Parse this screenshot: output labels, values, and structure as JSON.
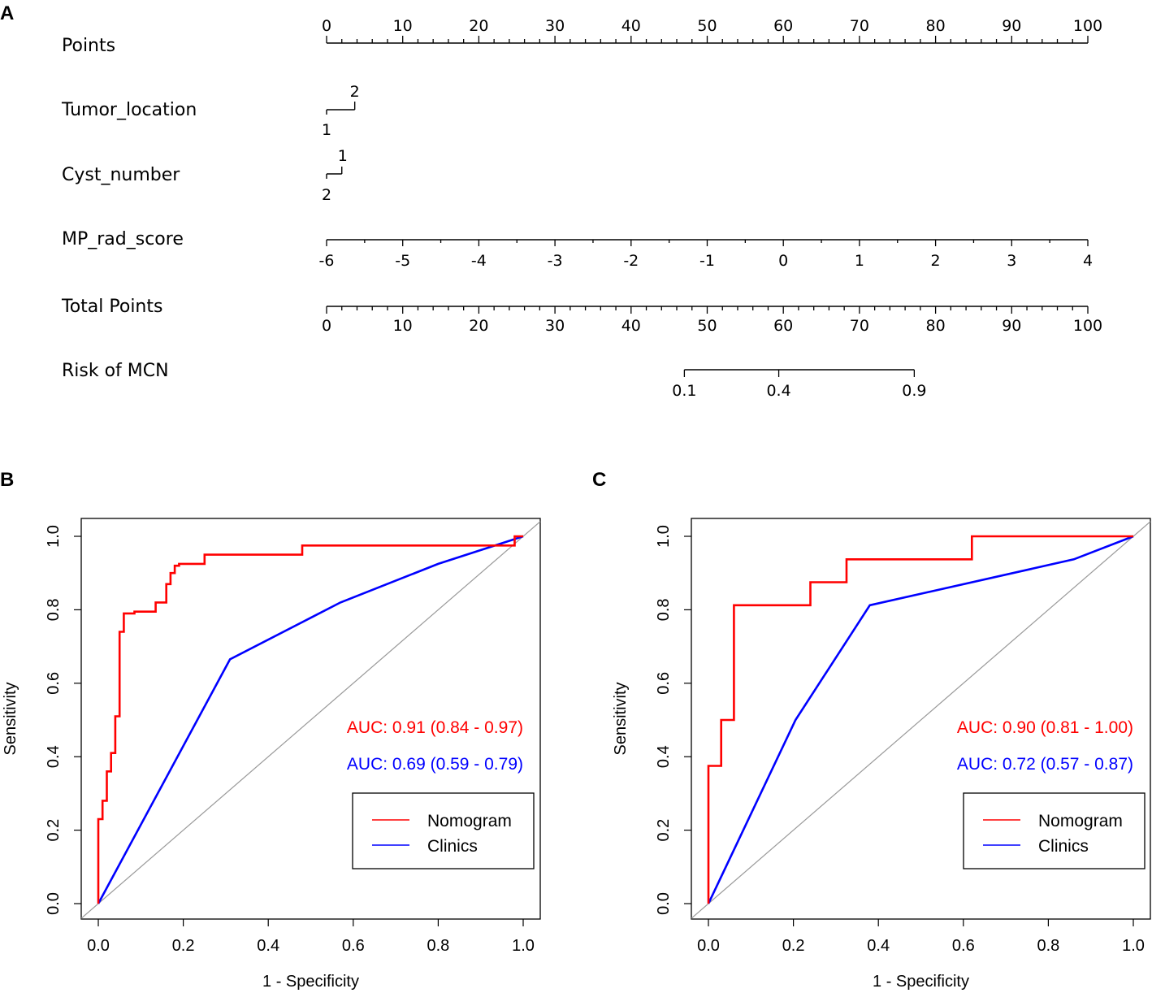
{
  "panels": {
    "a": "A",
    "b": "B",
    "c": "C"
  },
  "nomogram": {
    "rows": {
      "points": "Points",
      "tumor_location": "Tumor_location",
      "cyst_number": "Cyst_number",
      "rad_score": "MP_rad_score",
      "total_points": "Total Points",
      "risk": "Risk of MCN"
    },
    "points_scale": [
      0,
      10,
      20,
      30,
      40,
      50,
      60,
      70,
      80,
      90,
      100
    ],
    "tumor_location": {
      "levels": [
        "1",
        "2"
      ],
      "points": [
        0,
        3.7
      ]
    },
    "cyst_number": {
      "levels": [
        "2",
        "1"
      ],
      "points": [
        0,
        2.0
      ]
    },
    "rad_score": {
      "ticks": [
        -6,
        -5,
        -4,
        -3,
        -2,
        -1,
        0,
        1,
        2,
        3,
        4
      ],
      "points_at_min": 0,
      "points_at_max": 100
    },
    "total_points_scale": [
      0,
      10,
      20,
      30,
      40,
      50,
      60,
      70,
      80,
      90,
      100
    ],
    "risk": {
      "ticks": [
        "0.1",
        "0.4",
        "0.9"
      ],
      "total_points": [
        47.0,
        59.4,
        77.2
      ]
    }
  },
  "chart_data": [
    {
      "type": "line",
      "id": "B",
      "xlabel": "1 - Specificity",
      "ylabel": "Sensitivity",
      "xlim": [
        0,
        1
      ],
      "ylim": [
        0,
        1
      ],
      "ticks": [
        "0.0",
        "0.2",
        "0.4",
        "0.6",
        "0.8",
        "1.0"
      ],
      "series": [
        {
          "name": "Nomogram",
          "color": "#ff0000",
          "auc_label": "AUC: 0.91 (0.84 - 0.97)",
          "x": [
            0,
            0,
            0.01,
            0.01,
            0.02,
            0.02,
            0.03,
            0.03,
            0.04,
            0.04,
            0.05,
            0.05,
            0.06,
            0.06,
            0.085,
            0.085,
            0.135,
            0.135,
            0.16,
            0.16,
            0.17,
            0.17,
            0.18,
            0.18,
            0.19,
            0.19,
            0.25,
            0.25,
            0.48,
            0.48,
            0.98,
            0.98,
            1.0
          ],
          "y": [
            0,
            0.23,
            0.23,
            0.28,
            0.28,
            0.36,
            0.36,
            0.41,
            0.41,
            0.51,
            0.51,
            0.74,
            0.74,
            0.79,
            0.79,
            0.795,
            0.795,
            0.82,
            0.82,
            0.87,
            0.87,
            0.9,
            0.9,
            0.92,
            0.92,
            0.925,
            0.925,
            0.95,
            0.95,
            0.975,
            0.975,
            1.0,
            1.0
          ]
        },
        {
          "name": "Clinics",
          "color": "#0000ff",
          "auc_label": "AUC: 0.69 (0.59 - 0.79)",
          "x": [
            0,
            0.31,
            0.57,
            0.8,
            1.0
          ],
          "y": [
            0,
            0.665,
            0.82,
            0.925,
            1.0
          ]
        }
      ],
      "legend": [
        "Nomogram",
        "Clinics"
      ]
    },
    {
      "type": "line",
      "id": "C",
      "xlabel": "1 - Specificity",
      "ylabel": "Sensitivity",
      "xlim": [
        0,
        1
      ],
      "ylim": [
        0,
        1
      ],
      "ticks": [
        "0.0",
        "0.2",
        "0.4",
        "0.6",
        "0.8",
        "1.0"
      ],
      "series": [
        {
          "name": "Nomogram",
          "color": "#ff0000",
          "auc_label": "AUC: 0.90 (0.81 - 1.00)",
          "x": [
            0,
            0,
            0.03,
            0.03,
            0.06,
            0.06,
            0.24,
            0.24,
            0.325,
            0.325,
            0.62,
            0.62,
            1.0
          ],
          "y": [
            0,
            0.375,
            0.375,
            0.5,
            0.5,
            0.8125,
            0.8125,
            0.875,
            0.875,
            0.9375,
            0.9375,
            1.0,
            1.0
          ]
        },
        {
          "name": "Clinics",
          "color": "#0000ff",
          "auc_label": "AUC: 0.72 (0.57 - 0.87)",
          "x": [
            0,
            0.205,
            0.38,
            0.86,
            1.0
          ],
          "y": [
            0,
            0.5,
            0.8125,
            0.9375,
            1.0
          ]
        }
      ],
      "legend": [
        "Nomogram",
        "Clinics"
      ]
    }
  ]
}
